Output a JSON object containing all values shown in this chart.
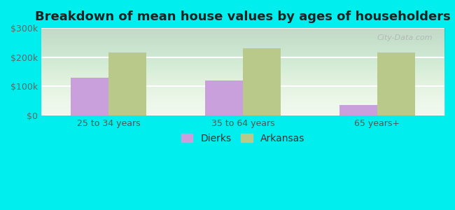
{
  "title": "Breakdown of mean house values by ages of householders",
  "categories": [
    "25 to 34 years",
    "35 to 64 years",
    "65 years+"
  ],
  "dierks_values": [
    130000,
    120000,
    35000
  ],
  "arkansas_values": [
    215000,
    230000,
    215000
  ],
  "dierks_color": "#c9a0dc",
  "arkansas_color": "#b8c98a",
  "ylim": [
    0,
    300000
  ],
  "yticks": [
    0,
    100000,
    200000,
    300000
  ],
  "ytick_labels": [
    "$0",
    "$100k",
    "$200k",
    "$300k"
  ],
  "background_color": "#00eeee",
  "title_fontsize": 13,
  "legend_labels": [
    "Dierks",
    "Arkansas"
  ],
  "bar_width": 0.28,
  "watermark": "City-Data.com"
}
